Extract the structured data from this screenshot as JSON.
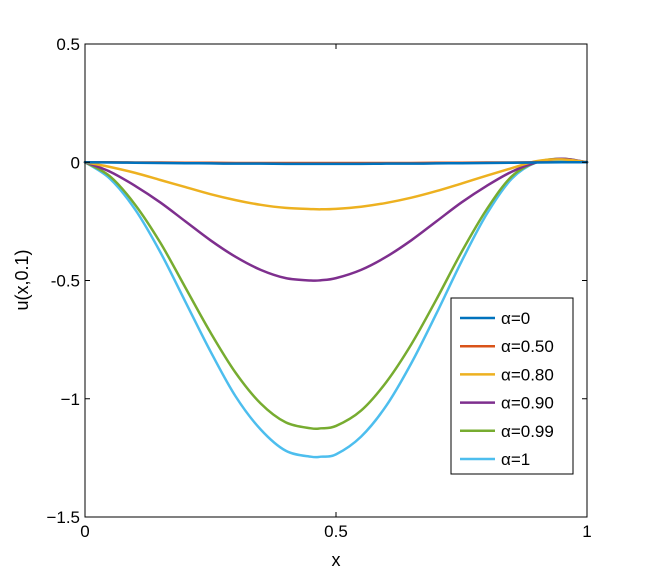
{
  "chart_data": {
    "type": "line",
    "xlabel": "x",
    "ylabel": "u(x,0.1)",
    "xlim": [
      0,
      1
    ],
    "ylim": [
      -1.5,
      0.5
    ],
    "xticks": [
      0,
      0.5,
      1
    ],
    "xtick_labels": [
      "0",
      "0.5",
      "1"
    ],
    "yticks": [
      -1.5,
      -1,
      -0.5,
      0,
      0.5
    ],
    "ytick_labels": [
      "−1.5",
      "−1",
      "-0.5",
      "0",
      "0.5"
    ],
    "grid": false,
    "legend_position": "bottom-right",
    "x": [
      0,
      0.05,
      0.1,
      0.15,
      0.2,
      0.25,
      0.3,
      0.35,
      0.4,
      0.45,
      0.47,
      0.5,
      0.55,
      0.6,
      0.65,
      0.7,
      0.75,
      0.8,
      0.85,
      0.9,
      0.95,
      1
    ],
    "series": [
      {
        "name": "α=0",
        "color": "#0072BD",
        "values": [
          0,
          -0.001,
          -0.002,
          -0.003,
          -0.004,
          -0.005,
          -0.006,
          -0.006,
          -0.007,
          -0.007,
          -0.007,
          -0.007,
          -0.007,
          -0.006,
          -0.006,
          -0.005,
          -0.004,
          -0.003,
          -0.002,
          -0.001,
          0,
          0
        ]
      },
      {
        "name": "α=0.50",
        "color": "#D95319",
        "values": [
          0,
          0,
          -0.001,
          -0.001,
          -0.002,
          -0.002,
          -0.003,
          -0.003,
          -0.003,
          -0.003,
          -0.003,
          -0.003,
          -0.003,
          -0.003,
          -0.003,
          -0.002,
          -0.002,
          -0.001,
          -0.001,
          0,
          0,
          0
        ]
      },
      {
        "name": "α=0.80",
        "color": "#EDB120",
        "values": [
          0,
          -0.02,
          -0.045,
          -0.075,
          -0.105,
          -0.135,
          -0.16,
          -0.18,
          -0.193,
          -0.198,
          -0.199,
          -0.197,
          -0.188,
          -0.172,
          -0.15,
          -0.122,
          -0.09,
          -0.057,
          -0.025,
          0.005,
          0.012,
          0
        ]
      },
      {
        "name": "α=0.90",
        "color": "#7E2F8E",
        "values": [
          0,
          -0.04,
          -0.1,
          -0.17,
          -0.25,
          -0.33,
          -0.4,
          -0.455,
          -0.49,
          -0.5,
          -0.499,
          -0.49,
          -0.455,
          -0.4,
          -0.33,
          -0.25,
          -0.17,
          -0.1,
          -0.04,
          0.0,
          0.015,
          0
        ]
      },
      {
        "name": "α=0.99",
        "color": "#77AC30",
        "values": [
          0,
          -0.06,
          -0.18,
          -0.34,
          -0.53,
          -0.72,
          -0.89,
          -1.02,
          -1.1,
          -1.125,
          -1.125,
          -1.115,
          -1.05,
          -0.93,
          -0.77,
          -0.58,
          -0.38,
          -0.2,
          -0.06,
          0.0,
          0.015,
          0
        ]
      },
      {
        "name": "α=1",
        "color": "#4DBEEE",
        "values": [
          0,
          -0.07,
          -0.2,
          -0.38,
          -0.59,
          -0.8,
          -0.99,
          -1.13,
          -1.22,
          -1.245,
          -1.245,
          -1.235,
          -1.16,
          -1.03,
          -0.85,
          -0.64,
          -0.42,
          -0.22,
          -0.07,
          0.0,
          0.01,
          0
        ]
      }
    ]
  }
}
